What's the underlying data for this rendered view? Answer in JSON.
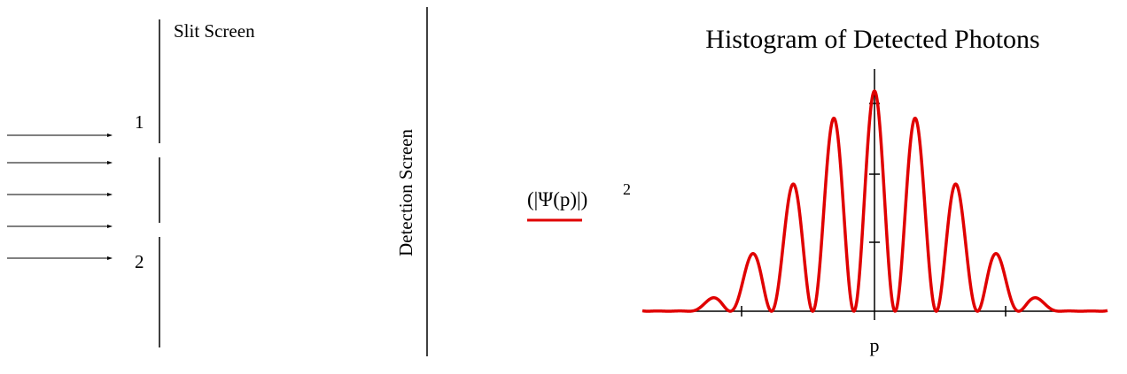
{
  "slit_diagram": {
    "slit_screen_label": "Slit Screen",
    "slit_1_label": "1",
    "slit_2_label": "2",
    "detection_screen_label": "Detection Screen"
  },
  "histogram": {
    "title": "Histogram of Detected Photons",
    "y_label": "(|Ψ(p)|)",
    "y_label_exponent": "2",
    "x_label": "p"
  }
}
